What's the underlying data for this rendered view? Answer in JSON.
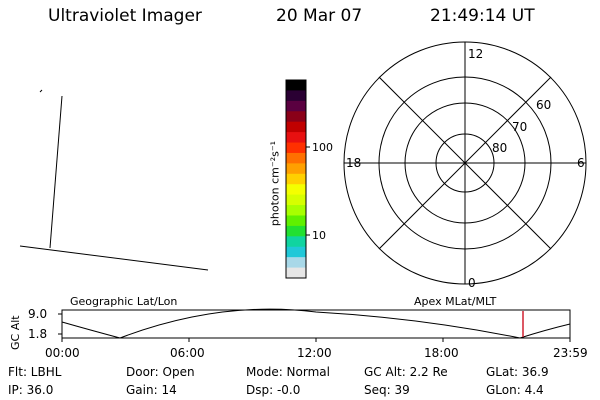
{
  "header": {
    "title": "Ultraviolet Imager",
    "date": "20 Mar 07",
    "time": "21:49:14 UT"
  },
  "colorbar": {
    "unit_label": "photon cm⁻²s⁻¹",
    "ticks": [
      "100",
      "10"
    ],
    "colors": [
      "#000000",
      "#2a0033",
      "#5a0040",
      "#8a0018",
      "#c00000",
      "#e81010",
      "#ff3000",
      "#ff7000",
      "#ffa000",
      "#ffd000",
      "#f4ff00",
      "#d6ff00",
      "#a8ff00",
      "#60f000",
      "#22e030",
      "#10d4a0",
      "#20c8d8",
      "#a8d8e8",
      "#e6e6e6"
    ]
  },
  "polar_plot": {
    "mlt_labels": {
      "top": "12",
      "left": "18",
      "right": "6",
      "bottom": "0"
    },
    "lat_labels": [
      "60",
      "70",
      "80"
    ]
  },
  "timeline": {
    "left_label": "Geographic Lat/Lon",
    "right_label": "Apex MLat/MLT",
    "axis_label": "GC Alt",
    "y_ticks": [
      "9.0",
      "1.8"
    ],
    "x_ticks": [
      "00:00",
      "06:00",
      "12:00",
      "18:00",
      "23:59"
    ],
    "current_time_marker": "21:49:14",
    "marker_color": "#d02030"
  },
  "status": {
    "flt": "Flt: LBHL",
    "door": "Door: Open",
    "mode": "Mode: Normal",
    "gc_alt": "GC Alt: 2.2 Re",
    "glat": "GLat:  36.9",
    "ip": "IP: 36.0",
    "gain": "Gain: 14",
    "dsp": "Dsp:   -0.0",
    "seq": "Seq: 39",
    "glon": "GLon:   4.4"
  }
}
